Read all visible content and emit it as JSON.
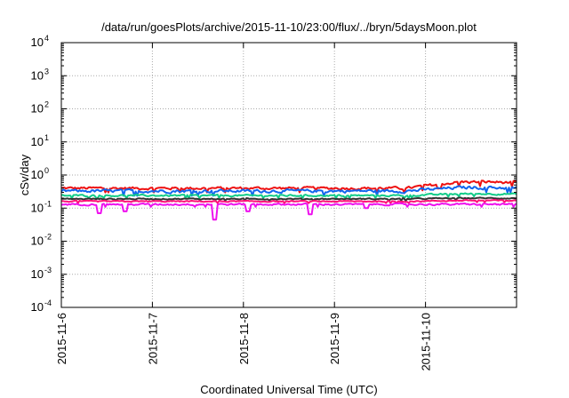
{
  "chart_data": {
    "type": "line",
    "title": "/data/run/goesPlots/archive/2015-11-10/23:00/flux/../bryn/5daysMoon.plot",
    "xlabel": "Coordinated Universal Time (UTC)",
    "ylabel": "cSv/day",
    "x_tick_labels": [
      "2015-11-6",
      "2015-11-7",
      "2015-11-8",
      "2015-11-9",
      "2015-11-10"
    ],
    "xlim_days": [
      0,
      5.0
    ],
    "yscale": "log",
    "ylim": [
      0.0001,
      10000
    ],
    "y_ticks": [
      {
        "base": "10",
        "exp": "4"
      },
      {
        "base": "10",
        "exp": "3"
      },
      {
        "base": "10",
        "exp": "2"
      },
      {
        "base": "10",
        "exp": "1"
      },
      {
        "base": "10",
        "exp": "0"
      },
      {
        "base": "10",
        "exp": "-1"
      },
      {
        "base": "10",
        "exp": "-2"
      },
      {
        "base": "10",
        "exp": "-3"
      },
      {
        "base": "10",
        "exp": "-4"
      }
    ],
    "grid": true,
    "series": [
      {
        "color": "#ee1111",
        "base": 0.4,
        "late": 0.62,
        "noise": 0.16,
        "dips": []
      },
      {
        "color": "#1166ee",
        "base": 0.33,
        "late": 0.42,
        "noise": 0.18,
        "dips": []
      },
      {
        "color": "#11cc88",
        "base": 0.24,
        "late": 0.27,
        "noise": 0.1,
        "dips": []
      },
      {
        "color": "#333333",
        "base": 0.19,
        "late": 0.2,
        "noise": 0.07,
        "dips": []
      },
      {
        "color": "#ff1177",
        "base": 0.16,
        "late": 0.17,
        "noise": 0.07,
        "dips": []
      },
      {
        "color": "#ee11ee",
        "base": 0.13,
        "late": 0.13,
        "noise": 0.1,
        "dips": [
          [
            0.42,
            0.07
          ],
          [
            0.7,
            0.08
          ],
          [
            1.69,
            0.045
          ],
          [
            2.05,
            0.08
          ],
          [
            2.73,
            0.065
          ],
          [
            3.35,
            0.1
          ]
        ]
      }
    ]
  }
}
